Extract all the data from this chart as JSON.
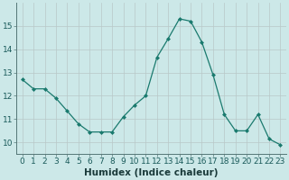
{
  "x": [
    0,
    1,
    2,
    3,
    4,
    5,
    6,
    7,
    8,
    9,
    10,
    11,
    12,
    13,
    14,
    15,
    16,
    17,
    18,
    19,
    20,
    21,
    22,
    23
  ],
  "y": [
    12.7,
    12.3,
    12.3,
    11.9,
    11.35,
    10.8,
    10.45,
    10.45,
    10.45,
    11.1,
    11.6,
    12.0,
    13.65,
    14.45,
    15.3,
    15.2,
    14.3,
    12.9,
    11.2,
    10.5,
    10.5,
    11.2,
    10.15,
    9.9
  ],
  "line_color": "#1a7a6e",
  "marker": "D",
  "marker_size": 2,
  "bg_color": "#cce8e8",
  "grid_color": "#b8c8c8",
  "xlabel": "Humidex (Indice chaleur)",
  "ylim": [
    9.5,
    16.0
  ],
  "xlim": [
    -0.5,
    23.5
  ],
  "yticks": [
    10,
    11,
    12,
    13,
    14,
    15
  ],
  "xticks": [
    0,
    1,
    2,
    3,
    4,
    5,
    6,
    7,
    8,
    9,
    10,
    11,
    12,
    13,
    14,
    15,
    16,
    17,
    18,
    19,
    20,
    21,
    22,
    23
  ],
  "tick_fontsize": 6.5,
  "xlabel_fontsize": 7.5
}
